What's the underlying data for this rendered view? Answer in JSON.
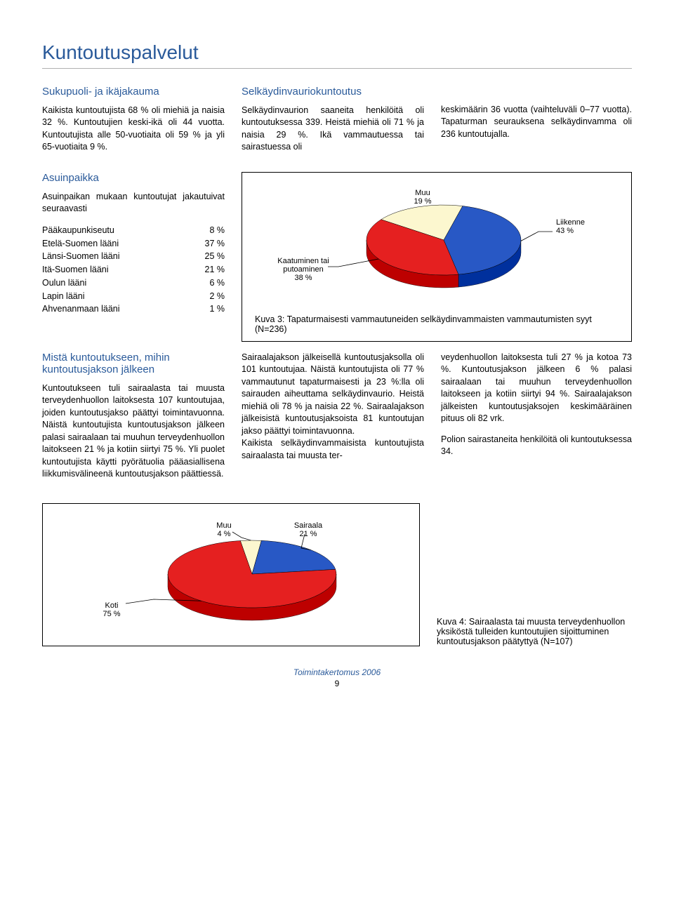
{
  "page_title": "Kuntoutuspalvelut",
  "footer_text": "Toimintakertomus 2006",
  "page_number": "9",
  "sections": {
    "sukupuoli": {
      "heading": "Sukupuoli- ja ikäjakauma",
      "body": "Kaikista kuntoutujista 68 % oli miehiä ja naisia 32 %. Kuntoutujien keski-ikä oli 44 vuotta. Kuntoutujista alle 50-vuotiaita oli 59 % ja yli 65-vuotiaita 9 %."
    },
    "asuinpaikka": {
      "heading": "Asuinpaikka",
      "intro": "Asuinpaikan mukaan kuntoutujat jakautuivat seuraavasti",
      "regions": [
        {
          "label": "Pääkaupunkiseutu",
          "value": "8 %"
        },
        {
          "label": "Etelä-Suomen lääni",
          "value": "37 %"
        },
        {
          "label": "Länsi-Suomen lääni",
          "value": "25 %"
        },
        {
          "label": "Itä-Suomen lääni",
          "value": "21 %"
        },
        {
          "label": "Oulun lääni",
          "value": "6 %"
        },
        {
          "label": "Lapin lääni",
          "value": "2 %"
        },
        {
          "label": "Ahvenanmaan lääni",
          "value": "1 %"
        }
      ]
    },
    "selkaydin": {
      "heading": "Selkäydinvauriokuntoutus",
      "body": "Selkäydinvaurion saaneita henkilöitä oli kuntoutuksessa 339. Heistä miehiä oli 71 % ja naisia 29 %. Ikä vammautuessa tai sairastuessa oli"
    },
    "right_para": {
      "body": "keskimäärin 36 vuotta (vaihteluväli 0–77 vuotta). Tapaturman seurauksena selkäydinvamma oli 236 kuntoutujalla."
    },
    "mista": {
      "heading": "Mistä kuntoutukseen, mihin kuntoutusjakson jälkeen",
      "body": "Kuntoutukseen tuli sairaalasta tai muusta terveydenhuollon laitoksesta 107 kuntoutujaa, joiden kuntoutusjakso päättyi toimintavuonna. Näistä kuntoutujista kuntoutusjakson jälkeen palasi sairaalaan tai muuhun terveydenhuollon laitokseen 21 % ja kotiin siirtyi 75 %. Yli puolet kuntoutujista käytti pyörätuolia pääasiallisena liikkumisvälineenä kuntoutusjakson päättiessä."
    },
    "sairaala_mid": {
      "body": "Sairaalajakson jälkeisellä kuntoutusjaksolla oli 101 kuntoutujaa. Näistä kuntoutujista oli 77 % vammautunut tapaturmaisesti ja 23 %:lla oli sairauden aiheuttama selkäydinvaurio. Heistä miehiä oli 78 % ja naisia 22 %. Sairaalajakson jälkeisistä kuntoutusjaksoista 81 kuntoutujan jakso päättyi toimintavuonna.\nKaikista selkäydinvammaisista kuntoutujista sairaalasta tai muusta ter-"
    },
    "sairaala_right": {
      "body": "veydenhuollon laitoksesta tuli 27 % ja kotoa 73 %. Kuntoutusjakson jälkeen 6 % palasi sairaalaan tai muuhun terveydenhuollon laitokseen ja kotiin siirtyi 94 %. Sairaalajakson jälkeisten kuntoutusjaksojen keskimääräinen pituus oli 82 vrk.",
      "body2": "Polion sairastaneita henkilöitä oli kuntoutuksessa 34."
    }
  },
  "chart1": {
    "type": "pie",
    "caption": "Kuva 3: Tapaturmaisesti vammautuneiden selkäydinvammaisten vammautumisten syyt (N=236)",
    "slices": [
      {
        "label": "Muu",
        "sublabel": "19 %",
        "value": 19,
        "color": "#fcf7cf"
      },
      {
        "label": "Liikenne",
        "sublabel": "43 %",
        "value": 43,
        "color": "#2858c5"
      },
      {
        "label": "Kaatuminen tai\nputoaminen",
        "sublabel": "38 %",
        "value": 38,
        "color": "#e52020"
      }
    ],
    "side_color": "#a01010"
  },
  "chart2": {
    "type": "pie",
    "caption": "Kuva 4: Sairaalasta tai muusta terveydenhuollon yksiköstä tulleiden kuntoutujien sijoittuminen kuntoutusjakson päätyttyä (N=107)",
    "slices": [
      {
        "label": "Muu",
        "sublabel": "4 %",
        "value": 4,
        "color": "#fcf7cf"
      },
      {
        "label": "Sairaala",
        "sublabel": "21 %",
        "value": 21,
        "color": "#2858c5"
      },
      {
        "label": "Koti",
        "sublabel": "75 %",
        "value": 75,
        "color": "#e52020"
      }
    ],
    "side_color": "#a01010"
  },
  "colors": {
    "heading": "#2a5a9a",
    "border": "#b0b0b0"
  }
}
